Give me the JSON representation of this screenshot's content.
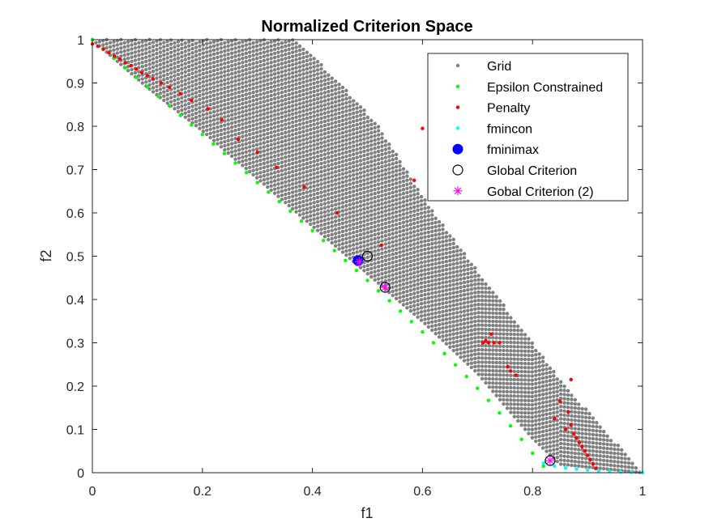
{
  "chart_data": {
    "type": "scatter",
    "title": "Normalized Criterion Space",
    "xlabel": "f1",
    "ylabel": "f2",
    "xlim": [
      0,
      1
    ],
    "ylim": [
      0,
      1
    ],
    "xticks": [
      "0",
      "0.2",
      "0.4",
      "0.6",
      "0.8",
      "1"
    ],
    "yticks": [
      "0",
      "0.1",
      "0.2",
      "0.3",
      "0.4",
      "0.5",
      "0.6",
      "0.7",
      "0.8",
      "0.9",
      "1"
    ],
    "grid": false,
    "legend_position": "top-right",
    "series": [
      {
        "name": "Grid",
        "marker": "dot",
        "color": "#808080",
        "description_region": {
          "upper_edge": [
            [
              0.0,
              1.0
            ],
            [
              0.37,
              1.0
            ],
            [
              0.45,
              0.9
            ],
            [
              0.52,
              0.8
            ],
            [
              0.57,
              0.7
            ],
            [
              0.62,
              0.6
            ],
            [
              0.68,
              0.5
            ],
            [
              0.74,
              0.4
            ],
            [
              0.8,
              0.3
            ],
            [
              0.86,
              0.2
            ],
            [
              0.93,
              0.1
            ],
            [
              1.0,
              0.0
            ]
          ],
          "lower_edge": [
            [
              0.0,
              1.0
            ],
            [
              0.1,
              0.89
            ],
            [
              0.2,
              0.79
            ],
            [
              0.3,
              0.68
            ],
            [
              0.4,
              0.57
            ],
            [
              0.5,
              0.46
            ],
            [
              0.6,
              0.35
            ],
            [
              0.7,
              0.23
            ],
            [
              0.8,
              0.08
            ],
            [
              0.85,
              0.02
            ],
            [
              1.0,
              0.0
            ]
          ]
        }
      },
      {
        "name": "Epsilon Constrained",
        "marker": "dot",
        "color": "#00ff00",
        "x": [
          0.0,
          0.02,
          0.04,
          0.06,
          0.08,
          0.1,
          0.12,
          0.14,
          0.16,
          0.18,
          0.2,
          0.22,
          0.24,
          0.26,
          0.28,
          0.3,
          0.32,
          0.34,
          0.36,
          0.38,
          0.4,
          0.42,
          0.44,
          0.46,
          0.48,
          0.5,
          0.52,
          0.54,
          0.56,
          0.58,
          0.6,
          0.62,
          0.64,
          0.66,
          0.68,
          0.7,
          0.72,
          0.74,
          0.76,
          0.78,
          0.8,
          0.82
        ],
        "y": [
          1.0,
          0.98,
          0.957,
          0.935,
          0.913,
          0.891,
          0.869,
          0.847,
          0.825,
          0.803,
          0.781,
          0.759,
          0.737,
          0.715,
          0.693,
          0.67,
          0.648,
          0.626,
          0.604,
          0.581,
          0.559,
          0.536,
          0.513,
          0.49,
          0.467,
          0.444,
          0.42,
          0.397,
          0.373,
          0.349,
          0.325,
          0.3,
          0.275,
          0.249,
          0.222,
          0.195,
          0.167,
          0.138,
          0.108,
          0.077,
          0.045,
          0.015
        ]
      },
      {
        "name": "Penalty",
        "marker": "dot",
        "color": "#ff0000",
        "x": [
          0.0,
          0.01,
          0.02,
          0.03,
          0.04,
          0.05,
          0.06,
          0.07,
          0.08,
          0.09,
          0.1,
          0.11,
          0.125,
          0.14,
          0.16,
          0.18,
          0.21,
          0.235,
          0.265,
          0.3,
          0.335,
          0.385,
          0.445,
          0.525,
          0.6,
          0.635,
          0.66,
          0.68,
          0.585,
          0.71,
          0.715,
          0.72,
          0.73,
          0.74,
          0.725,
          0.755,
          0.76,
          0.77,
          0.84,
          0.86,
          0.87,
          0.875,
          0.88,
          0.885,
          0.89,
          0.895,
          0.9,
          0.905,
          0.91,
          0.915,
          0.87,
          0.85,
          0.865
        ],
        "y": [
          0.99,
          0.985,
          0.978,
          0.97,
          0.962,
          0.955,
          0.947,
          0.94,
          0.932,
          0.924,
          0.917,
          0.91,
          0.9,
          0.89,
          0.875,
          0.86,
          0.84,
          0.815,
          0.77,
          0.74,
          0.705,
          0.66,
          0.6,
          0.525,
          0.795,
          0.75,
          0.72,
          0.68,
          0.675,
          0.3,
          0.305,
          0.3,
          0.3,
          0.3,
          0.32,
          0.245,
          0.235,
          0.225,
          0.125,
          0.1,
          0.11,
          0.09,
          0.08,
          0.07,
          0.06,
          0.05,
          0.04,
          0.03,
          0.02,
          0.01,
          0.215,
          0.165,
          0.14
        ]
      },
      {
        "name": "fmincon",
        "marker": "dot",
        "color": "#00ffff",
        "x": [
          0.82,
          0.84,
          0.86,
          0.88,
          0.9,
          0.92,
          0.94,
          0.96,
          0.98,
          1.0
        ],
        "y": [
          0.022,
          0.015,
          0.011,
          0.008,
          0.006,
          0.004,
          0.003,
          0.002,
          0.001,
          0.0
        ]
      },
      {
        "name": "fminimax",
        "marker": "filled-circle",
        "color": "#0000ff",
        "x": [
          0.483
        ],
        "y": [
          0.49
        ]
      },
      {
        "name": "Global Criterion",
        "marker": "open-circle",
        "color": "#000000",
        "x": [
          0.5,
          0.532,
          0.832
        ],
        "y": [
          0.5,
          0.428,
          0.028
        ]
      },
      {
        "name": "Gobal Criterion (2)",
        "marker": "asterisk",
        "color": "#ff00ff",
        "x": [
          0.485,
          0.532,
          0.832
        ],
        "y": [
          0.487,
          0.428,
          0.028
        ]
      }
    ]
  }
}
